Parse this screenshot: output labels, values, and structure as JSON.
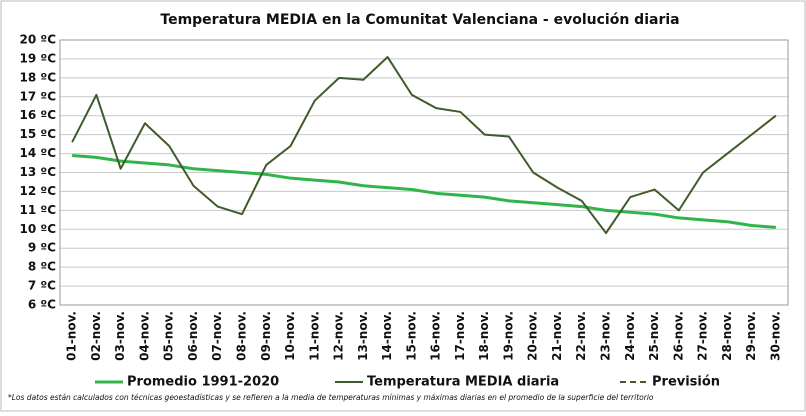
{
  "chart_data": {
    "type": "line",
    "title": "Temperatura MEDIA en la Comunitat Valenciana - evolución diaria",
    "footnote": "*Los datos están calculados con técnicas geoestadísticas y se refieren a la media de temperaturas mínimas y máximas diarias en el promedio de la superficie del territorio",
    "categories": [
      "01-nov.",
      "02-nov.",
      "03-nov.",
      "04-nov.",
      "05-nov.",
      "06-nov.",
      "07-nov.",
      "08-nov.",
      "09-nov.",
      "10-nov.",
      "11-nov.",
      "12-nov.",
      "13-nov.",
      "14-nov.",
      "15-nov.",
      "16-nov.",
      "17-nov.",
      "18-nov.",
      "19-nov.",
      "20-nov.",
      "21-nov.",
      "22-nov.",
      "23-nov.",
      "24-nov.",
      "25-nov.",
      "26-nov.",
      "27-nov.",
      "28-nov.",
      "29-nov.",
      "30-nov."
    ],
    "series": [
      {
        "name": "Promedio 1991-2020",
        "color": "#2fb54a",
        "values": [
          13.9,
          13.8,
          13.6,
          13.5,
          13.4,
          13.2,
          13.1,
          13.0,
          12.9,
          12.7,
          12.6,
          12.5,
          12.3,
          12.2,
          12.1,
          11.9,
          11.8,
          11.7,
          11.5,
          11.4,
          11.3,
          11.2,
          11.0,
          10.9,
          10.8,
          10.6,
          10.5,
          10.4,
          10.2,
          10.1
        ]
      },
      {
        "name": "Temperatura MEDIA diaria",
        "color": "#3f5b2b",
        "values": [
          14.6,
          17.1,
          13.2,
          15.6,
          14.4,
          12.3,
          11.2,
          10.8,
          13.4,
          14.4,
          16.8,
          18.0,
          17.9,
          19.1,
          17.1,
          16.4,
          16.2,
          15.0,
          14.9,
          13.0,
          12.2,
          11.5,
          9.8,
          11.7,
          12.1,
          11.0,
          13.0,
          14.0,
          15.0,
          16.0
        ]
      },
      {
        "name": "Previsión",
        "color": "#3f5b2b",
        "dashed": true,
        "values": [
          null,
          null,
          null,
          null,
          null,
          null,
          null,
          null,
          null,
          null,
          null,
          null,
          null,
          null,
          null,
          null,
          null,
          null,
          null,
          null,
          null,
          null,
          null,
          null,
          null,
          null,
          null,
          null,
          null,
          null
        ]
      }
    ],
    "ylim": [
      6,
      20
    ],
    "yticks": [
      {
        "value": 6,
        "label": "6 ºC"
      },
      {
        "value": 7,
        "label": "7 ºC"
      },
      {
        "value": 8,
        "label": "8 ºC"
      },
      {
        "value": 9,
        "label": "9 ºC"
      },
      {
        "value": 10,
        "label": "10 ºC"
      },
      {
        "value": 11,
        "label": "11 ºC"
      },
      {
        "value": 12,
        "label": "12 ºC"
      },
      {
        "value": 13,
        "label": "13 ºC"
      },
      {
        "value": 14,
        "label": "14 ºC"
      },
      {
        "value": 15,
        "label": "15 ºC"
      },
      {
        "value": 16,
        "label": "16 ºC"
      },
      {
        "value": 17,
        "label": "17 ºC"
      },
      {
        "value": 18,
        "label": "18 ºC"
      },
      {
        "value": 19,
        "label": "19 ºC"
      },
      {
        "value": 20,
        "label": "20 ºC"
      }
    ],
    "grid": true
  }
}
